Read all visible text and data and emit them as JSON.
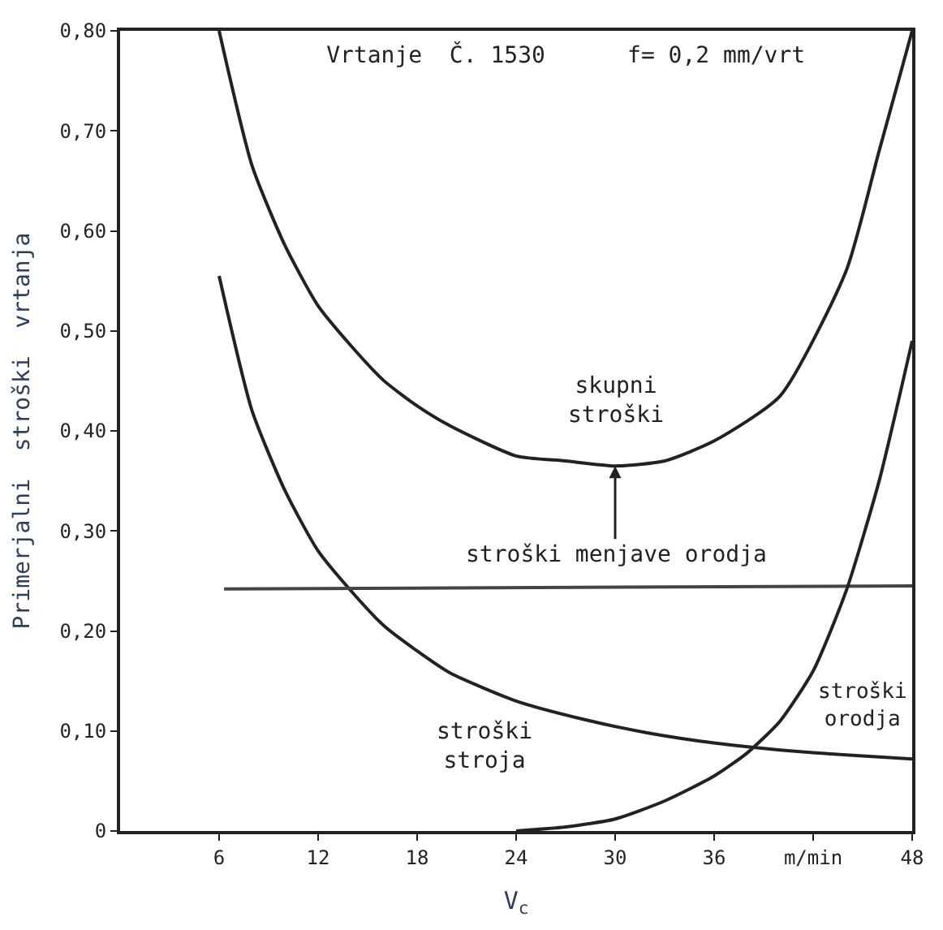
{
  "chart_data": {
    "type": "line",
    "title": "Vrtanje  Č. 1530      f= 0,2 mm/vrt",
    "xlabel": "V$_{c}$",
    "ylabel": "Primerjalni  stroški  vrtanja",
    "series": [
      {
        "name": "skupni\nstroški",
        "color": "#222222",
        "x": [
          6,
          8,
          10,
          12,
          14,
          16,
          18,
          20,
          24,
          27,
          30,
          33,
          36,
          40,
          44,
          46,
          48
        ],
        "values": [
          0.8,
          0.665,
          0.585,
          0.525,
          0.485,
          0.45,
          0.425,
          0.405,
          0.375,
          0.37,
          0.365,
          0.37,
          0.39,
          0.435,
          0.56,
          0.68,
          0.8
        ]
      },
      {
        "name": "stroški\nstroja",
        "color": "#222222",
        "x": [
          6,
          8,
          10,
          12,
          14,
          16,
          18,
          20,
          24,
          28,
          32,
          36,
          40,
          44,
          48
        ],
        "values": [
          0.555,
          0.42,
          0.34,
          0.28,
          0.24,
          0.205,
          0.18,
          0.158,
          0.13,
          0.112,
          0.098,
          0.088,
          0.081,
          0.076,
          0.072
        ]
      },
      {
        "color": "#444444",
        "x": [
          6.3,
          48
        ],
        "values": [
          0.242,
          0.245
        ]
      },
      {
        "name": "stroški\norodja",
        "color": "#222222",
        "x": [
          24,
          27,
          30,
          33,
          36,
          38,
          40,
          42,
          44,
          46,
          48
        ],
        "values": [
          0,
          0.004,
          0.012,
          0.03,
          0.055,
          0.078,
          0.11,
          0.16,
          0.24,
          0.35,
          0.49
        ]
      }
    ],
    "annotations": [
      {
        "text": "stroški menjave orodja",
        "x": 30,
        "y": 0.365
      }
    ],
    "xlim": [
      0,
      48
    ],
    "xticks": [
      6,
      12,
      18,
      24,
      30,
      36,
      {
        "value": 42,
        "label": "m/min"
      },
      48
    ],
    "ylim": [
      0,
      0.8
    ],
    "yticks": [
      0,
      {
        "value": 0.1,
        "label": "0,10"
      },
      {
        "value": 0.2,
        "label": "0,20"
      },
      {
        "value": 0.3,
        "label": "0,30"
      },
      {
        "value": 0.4,
        "label": "0,40"
      },
      {
        "value": 0.5,
        "label": "0,50"
      },
      {
        "value": 0.6,
        "label": "0,60"
      },
      {
        "value": 0.7,
        "label": "0,70"
      },
      {
        "value": 0.8,
        "label": "0,80"
      }
    ],
    "legend": false,
    "marker": "none",
    "line_style": "solid"
  }
}
